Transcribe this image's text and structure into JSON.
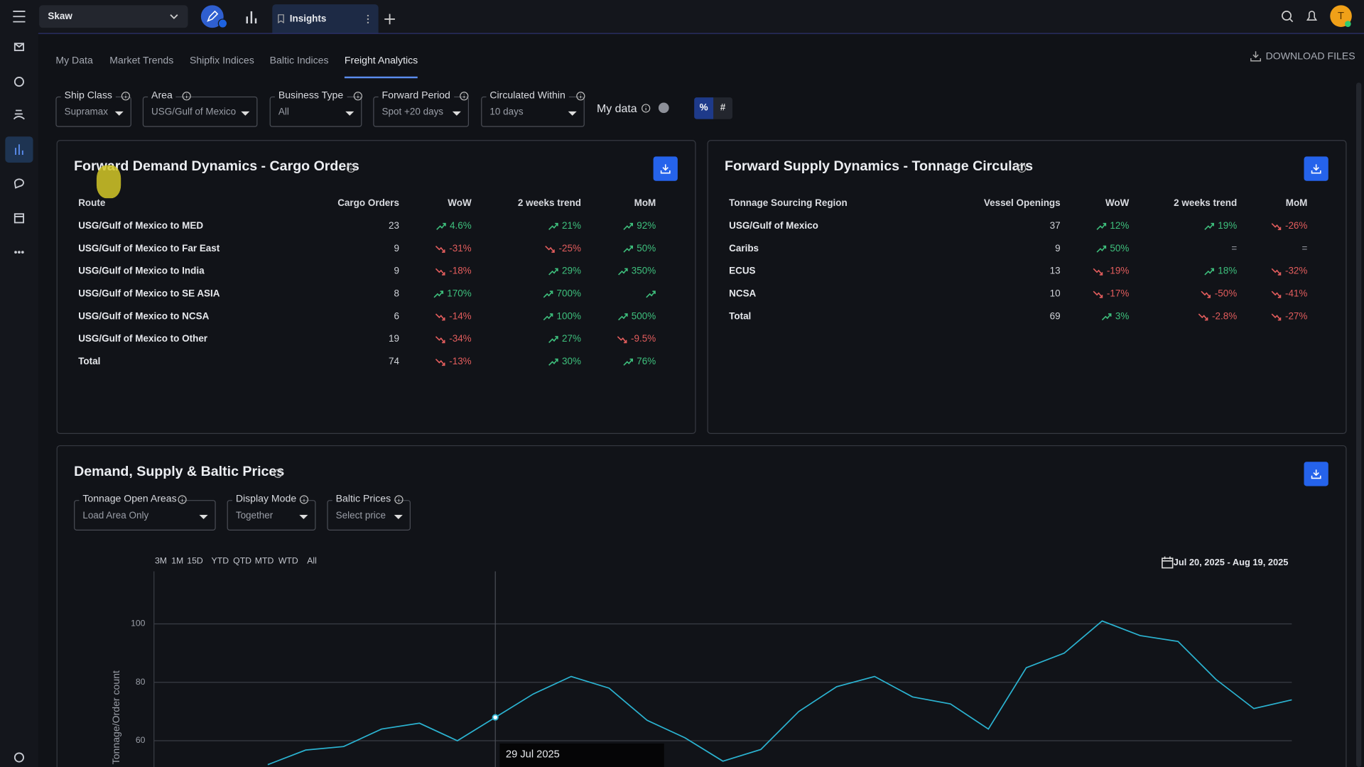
{
  "topbar": {
    "workspace": "Skaw",
    "tab": "Insights",
    "avatar": "T"
  },
  "nav_tabs": [
    "My Data",
    "Market Trends",
    "Shipfix Indices",
    "Baltic Indices",
    "Freight Analytics"
  ],
  "active_tab": 4,
  "download_files": "DOWNLOAD FILES",
  "filters": [
    {
      "label": "Ship Class",
      "value": "Supramax"
    },
    {
      "label": "Area",
      "value": "USG/Gulf of Mexico"
    },
    {
      "label": "Business Type",
      "value": "All"
    },
    {
      "label": "Forward Period",
      "value": "Spot +20 days"
    },
    {
      "label": "Circulated Within",
      "value": "10 days"
    }
  ],
  "my_data": "My data",
  "display_toggle": [
    "%",
    "#"
  ],
  "demand": {
    "title": "Forward Demand Dynamics - Cargo Orders",
    "columns": [
      "Route",
      "Cargo Orders",
      "WoW",
      "2 weeks trend",
      "MoM"
    ],
    "rows": [
      [
        "USG/Gulf of Mexico to MED",
        23,
        "4.6%",
        "21%",
        "92%"
      ],
      [
        "USG/Gulf of Mexico to Far East",
        9,
        "-31%",
        "-25%",
        "50%"
      ],
      [
        "USG/Gulf of Mexico to India",
        9,
        "-18%",
        "29%",
        "350%"
      ],
      [
        "USG/Gulf of Mexico to SE ASIA",
        8,
        "170%",
        "700%",
        null
      ],
      [
        "USG/Gulf of Mexico to NCSA",
        6,
        "-14%",
        "100%",
        "500%"
      ],
      [
        "USG/Gulf of Mexico to Other",
        19,
        "-34%",
        "27%",
        "-9.5%"
      ],
      [
        "Total",
        74,
        "-13%",
        "30%",
        "76%"
      ]
    ],
    "trends": [
      [
        "up",
        "up",
        "up"
      ],
      [
        "down",
        "down",
        "up"
      ],
      [
        "down",
        "up",
        "up"
      ],
      [
        "up",
        "up",
        "up"
      ],
      [
        "down",
        "up",
        "up"
      ],
      [
        "down",
        "up",
        "down"
      ],
      [
        "down",
        "up",
        "up"
      ]
    ]
  },
  "supply": {
    "title": "Forward Supply Dynamics - Tonnage Circulars",
    "columns": [
      "Tonnage Sourcing Region",
      "Vessel Openings",
      "WoW",
      "2 weeks trend",
      "MoM"
    ],
    "rows": [
      [
        "USG/Gulf of Mexico",
        37,
        "12%",
        "19%",
        "-26%"
      ],
      [
        "Caribs",
        9,
        "50%",
        "=",
        "="
      ],
      [
        "ECUS",
        13,
        "-19%",
        "18%",
        "-32%"
      ],
      [
        "NCSA",
        10,
        "-17%",
        "-50%",
        "-41%"
      ],
      [
        "Total",
        69,
        "3%",
        "-2.8%",
        "-27%"
      ]
    ],
    "trends": [
      [
        "up",
        "up",
        "down"
      ],
      [
        "up",
        "flat",
        "flat"
      ],
      [
        "down",
        "up",
        "down"
      ],
      [
        "down",
        "down",
        "down"
      ],
      [
        "up",
        "down",
        "down"
      ]
    ]
  },
  "prices": {
    "title": "Demand, Supply & Baltic Prices",
    "filters": [
      {
        "label": "Tonnage Open Areas",
        "value": "Load Area Only"
      },
      {
        "label": "Display Mode",
        "value": "Together"
      },
      {
        "label": "Baltic Prices",
        "value": "Select price"
      }
    ],
    "ranges": [
      "3M",
      "1M",
      "15D",
      "YTD",
      "QTD",
      "MTD",
      "WTD",
      "All"
    ],
    "date_range": "Jul 20, 2025 - Aug 19, 2025"
  },
  "chart_data": {
    "type": "line",
    "y_label": "Tonnage/Order count",
    "categories": [
      null,
      null,
      null,
      null,
      null,
      null,
      null,
      null,
      null,
      null,
      null,
      null,
      null,
      null,
      null,
      null,
      null,
      null,
      null,
      null,
      null,
      null,
      null,
      null,
      null,
      null,
      null,
      null,
      null,
      null,
      null
    ],
    "series": [
      {
        "color": "#2bb3d1",
        "values": [
          null,
          null,
          null,
          51.8,
          56.8,
          58,
          64,
          66,
          60,
          68,
          76,
          82,
          78,
          67,
          61,
          53,
          57,
          70,
          78.5,
          82,
          75,
          72.6,
          64,
          85,
          90,
          101,
          96,
          94,
          81,
          71,
          74
        ]
      }
    ],
    "ylim": [
      51,
      118
    ],
    "yticks": [
      60,
      80,
      100
    ],
    "grid": true,
    "tooltip": {
      "index": 9,
      "label": "29 Jul 2025"
    }
  }
}
